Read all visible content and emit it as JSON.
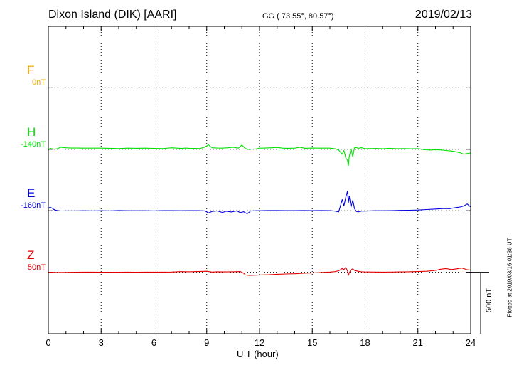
{
  "header": {
    "title": "Dixon Island (DIK)  [AARI]",
    "coords": "GG ( 73.55°,  80.57°)",
    "date": "2019/02/13"
  },
  "footer": {
    "plotted_note": "Plotted at 2019/03/16 01:36 UT",
    "scale_label": "500 nT"
  },
  "chart_data": {
    "type": "line",
    "xlabel": "U T (hour)",
    "xlim": [
      0,
      24
    ],
    "xticks": [
      "0",
      "3",
      "6",
      "9",
      "12",
      "15",
      "18",
      "21",
      "24"
    ],
    "grid": "dotted",
    "scale_bar_nT": 500,
    "series": [
      {
        "name": "F",
        "baseline_label": "0nT",
        "color": "#f5a800",
        "baseline_slot": 1,
        "x": [],
        "y": []
      },
      {
        "name": "H",
        "baseline_label": "-140nT",
        "color": "#00e000",
        "baseline_slot": 2,
        "x": [
          0,
          0.1,
          0.2,
          0.35,
          0.5,
          0.7,
          1.0,
          1.3,
          1.6,
          2.0,
          2.5,
          3.0,
          3.5,
          4.0,
          4.5,
          5.0,
          5.5,
          6.0,
          6.5,
          6.8,
          7.0,
          7.3,
          7.6,
          7.8,
          8.0,
          8.3,
          8.6,
          8.9,
          9.1,
          9.3,
          9.6,
          9.9,
          10.2,
          10.5,
          10.8,
          11.0,
          11.2,
          11.4,
          11.6,
          11.8,
          12.0,
          12.3,
          12.7,
          13.0,
          13.3,
          13.6,
          14.0,
          14.3,
          14.6,
          15.0,
          15.3,
          15.6,
          16.0,
          16.3,
          16.5,
          16.7,
          16.8,
          16.9,
          17.0,
          17.05,
          17.1,
          17.2,
          17.3,
          17.4,
          17.5,
          17.6,
          17.8,
          18.0,
          18.3,
          18.6,
          19.0,
          19.4,
          19.8,
          20.2,
          20.6,
          21.0,
          21.4,
          21.7,
          22.0,
          22.3,
          22.6,
          22.9,
          23.2,
          23.4,
          23.6,
          23.8,
          24.0
        ],
        "y": [
          -7,
          8,
          4,
          2,
          4,
          16,
          12,
          10,
          10,
          9,
          9,
          9,
          8,
          6,
          9,
          8,
          9,
          7,
          6,
          9,
          12,
          9,
          7,
          10,
          8,
          7,
          6,
          18,
          36,
          12,
          10,
          9,
          12,
          16,
          9,
          34,
          6,
          -2,
          2,
          3,
          9,
          10,
          12,
          15,
          9,
          8,
          9,
          16,
          8,
          10,
          9,
          9,
          9,
          4,
          -6,
          -40,
          -10,
          -70,
          -90,
          -135,
          -60,
          5,
          -60,
          12,
          15,
          8,
          13,
          5,
          6,
          7,
          4,
          8,
          5,
          6,
          4,
          5,
          -4,
          -6,
          -4,
          -5,
          -10,
          -14,
          -22,
          -28,
          -40,
          -35,
          -30
        ]
      },
      {
        "name": "E",
        "baseline_label": "-160nT",
        "color": "#0000dd",
        "baseline_slot": 3,
        "x": [
          0,
          0.1,
          0.2,
          0.3,
          0.4,
          0.5,
          0.7,
          1.0,
          1.5,
          2.0,
          2.5,
          3.0,
          3.5,
          4.0,
          4.5,
          5.0,
          5.5,
          6.0,
          6.5,
          7.0,
          7.5,
          8.0,
          8.5,
          8.9,
          9.1,
          9.3,
          9.6,
          9.9,
          10.1,
          10.4,
          10.7,
          10.9,
          11.1,
          11.3,
          11.5,
          11.8,
          12.0,
          12.5,
          13.0,
          13.5,
          14.0,
          14.5,
          15.0,
          15.5,
          16.0,
          16.3,
          16.5,
          16.7,
          16.8,
          16.9,
          17.0,
          17.05,
          17.1,
          17.2,
          17.3,
          17.4,
          17.5,
          17.6,
          17.8,
          18.0,
          18.5,
          19.0,
          19.5,
          20.0,
          20.5,
          21.0,
          21.5,
          22.0,
          22.5,
          22.8,
          23.0,
          23.2,
          23.4,
          23.6,
          23.8,
          24.0
        ],
        "y": [
          20,
          28,
          22,
          12,
          5,
          2,
          -2,
          -1,
          -1,
          0,
          -1,
          0,
          -1,
          2,
          0,
          0,
          0,
          -1,
          1,
          1,
          0,
          1,
          1,
          -1,
          -18,
          -6,
          -2,
          -14,
          -4,
          -10,
          -1,
          -15,
          -8,
          -25,
          -2,
          0,
          0,
          2,
          2,
          1,
          1,
          2,
          1,
          2,
          1,
          -3,
          -10,
          90,
          40,
          110,
          160,
          65,
          120,
          30,
          85,
          18,
          -5,
          -10,
          -3,
          -3,
          0,
          0,
          1,
          3,
          4,
          6,
          10,
          14,
          18,
          17,
          22,
          26,
          30,
          38,
          55,
          30
        ]
      },
      {
        "name": "Z",
        "baseline_label": "50nT",
        "color": "#e00000",
        "baseline_slot": 4,
        "x": [
          0,
          0.5,
          1.0,
          1.5,
          2.0,
          2.5,
          3.0,
          3.5,
          4.0,
          4.5,
          5.0,
          5.5,
          6.0,
          6.5,
          7.0,
          7.5,
          8.0,
          8.5,
          9.0,
          9.3,
          9.6,
          10.0,
          10.5,
          10.9,
          11.0,
          11.1,
          11.2,
          11.4,
          11.8,
          12.0,
          12.5,
          13.0,
          13.5,
          14.0,
          14.5,
          15.0,
          15.5,
          16.0,
          16.3,
          16.5,
          16.7,
          16.8,
          16.9,
          17.0,
          17.05,
          17.1,
          17.2,
          17.3,
          17.4,
          17.6,
          17.8,
          18.0,
          18.5,
          19.0,
          19.5,
          20.0,
          20.5,
          21.0,
          21.5,
          22.0,
          22.3,
          22.6,
          22.9,
          23.2,
          23.5,
          23.8,
          24.0
        ],
        "y": [
          0,
          -2,
          -1,
          0,
          1,
          1,
          0,
          0,
          0,
          1,
          0,
          1,
          1,
          1,
          2,
          5,
          4,
          6,
          8,
          2,
          4,
          3,
          4,
          6,
          0,
          -8,
          -22,
          -25,
          -24,
          -22,
          -20,
          -16,
          -14,
          -12,
          -8,
          -6,
          -2,
          2,
          5,
          12,
          30,
          22,
          40,
          10,
          -25,
          -5,
          20,
          28,
          15,
          8,
          4,
          3,
          2,
          1,
          2,
          3,
          4,
          6,
          8,
          15,
          25,
          30,
          22,
          28,
          35,
          20,
          18
        ]
      }
    ]
  }
}
